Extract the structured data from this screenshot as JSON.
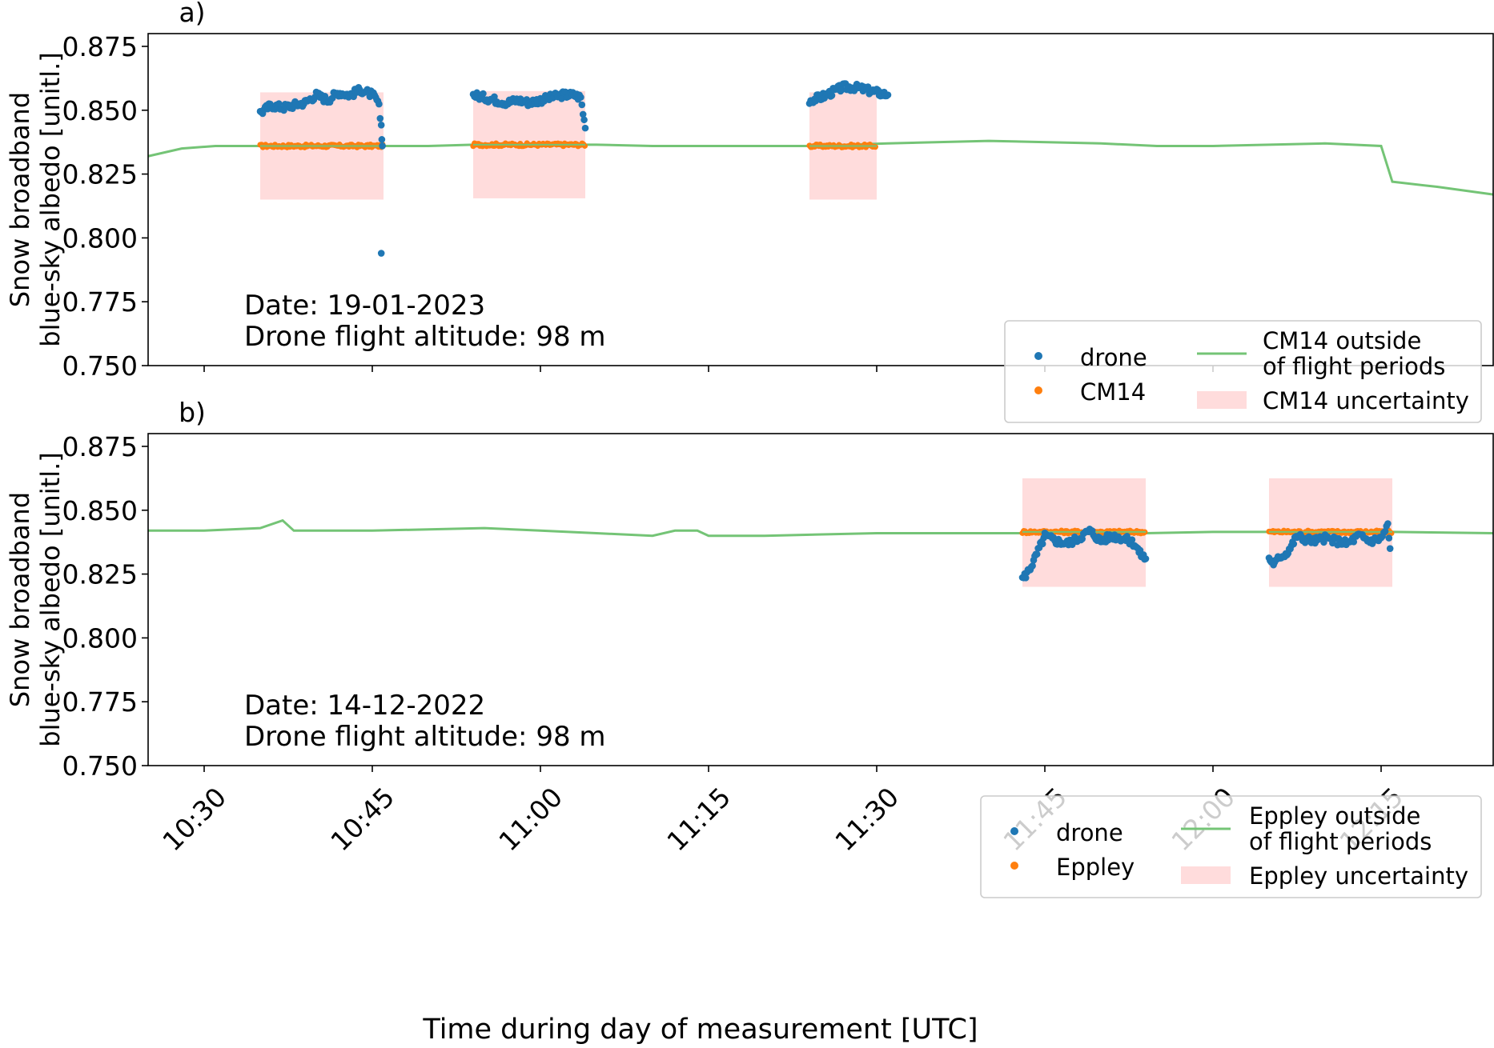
{
  "figure": {
    "xlabel": "Time during day of measurement [UTC]",
    "ylabel_line1": "Snow broadband",
    "ylabel_line2": "blue-sky albedo [unitl.]"
  },
  "chart_data": [
    {
      "type": "scatter",
      "panel_label": "a)",
      "annotation_date": "Date: 19-01-2023",
      "annotation_altitude": "Drone flight altitude: 98 m",
      "xlabel": "Time during day of measurement [UTC]",
      "ylabel": "Snow broadband blue-sky albedo [unitl.]",
      "ylim": [
        0.75,
        0.88
      ],
      "xlim": [
        "10:25",
        "12:25"
      ],
      "yticks": [
        "0.750",
        "0.775",
        "0.800",
        "0.825",
        "0.850",
        "0.875"
      ],
      "xticks": [
        "10:30",
        "10:45",
        "11:00",
        "11:15",
        "11:30",
        "11:45",
        "12:00",
        "12:15"
      ],
      "grid": false,
      "legend_position": "lower-right",
      "legend": [
        "drone",
        "CM14",
        "CM14 outside of flight periods",
        "CM14 uncertainty"
      ],
      "colors": {
        "drone": "#1f77b4",
        "reference": "#ff7f0e",
        "outside": "#74c476",
        "uncertainty": "#ffdcdc"
      },
      "flight_periods": [
        {
          "start": "10:35",
          "end": "10:46",
          "reference": 0.836,
          "band_low": 0.815,
          "band_high": 0.857,
          "drone": [
            [
              0,
              0.849
            ],
            [
              1,
              0.852
            ],
            [
              2,
              0.851
            ],
            [
              3,
              0.852
            ],
            [
              4,
              0.853
            ],
            [
              5,
              0.856
            ],
            [
              6,
              0.854
            ],
            [
              7,
              0.857
            ],
            [
              8,
              0.856
            ],
            [
              9,
              0.858
            ],
            [
              10,
              0.856
            ],
            [
              10.4,
              0.854
            ],
            [
              10.6,
              0.851
            ],
            [
              10.8,
              0.844
            ],
            [
              10.9,
              0.836
            ]
          ],
          "outliers": [
            [
              10.8,
              0.794
            ]
          ]
        },
        {
          "start": "10:54",
          "end": "11:04",
          "reference": 0.8365,
          "band_low": 0.8155,
          "band_high": 0.8575,
          "drone": [
            [
              0,
              0.856
            ],
            [
              1,
              0.855
            ],
            [
              2,
              0.854
            ],
            [
              3,
              0.853
            ],
            [
              4,
              0.854
            ],
            [
              5,
              0.853
            ],
            [
              6,
              0.854
            ],
            [
              7,
              0.855
            ],
            [
              8,
              0.856
            ],
            [
              9,
              0.856
            ],
            [
              9.6,
              0.855
            ],
            [
              10,
              0.843
            ]
          ],
          "outliers": []
        },
        {
          "start": "11:24",
          "end": "11:30",
          "reference": 0.836,
          "band_low": 0.815,
          "band_high": 0.857,
          "drone": [
            [
              0,
              0.854
            ],
            [
              1,
              0.855
            ],
            [
              2,
              0.857
            ],
            [
              3,
              0.859
            ],
            [
              4,
              0.859
            ],
            [
              5,
              0.858
            ],
            [
              6,
              0.857
            ],
            [
              7,
              0.856
            ]
          ],
          "outliers": []
        }
      ],
      "outside_series": [
        [
          "10:25",
          0.832
        ],
        [
          "10:28",
          0.835
        ],
        [
          "10:31",
          0.836
        ],
        [
          "10:35",
          0.836
        ],
        [
          "10:50",
          0.836
        ],
        [
          "10:54",
          0.8365
        ],
        [
          "11:05",
          0.8365
        ],
        [
          "11:10",
          0.836
        ],
        [
          "11:20",
          0.836
        ],
        [
          "11:24",
          0.836
        ],
        [
          "11:31",
          0.837
        ],
        [
          "11:40",
          0.838
        ],
        [
          "11:50",
          0.837
        ],
        [
          "11:55",
          0.836
        ],
        [
          "12:00",
          0.836
        ],
        [
          "12:10",
          0.837
        ],
        [
          "12:15",
          0.836
        ],
        [
          "12:16",
          0.822
        ],
        [
          "12:20",
          0.82
        ],
        [
          "12:25",
          0.817
        ]
      ]
    },
    {
      "type": "scatter",
      "panel_label": "b)",
      "annotation_date": "Date: 14-12-2022",
      "annotation_altitude": "Drone flight altitude: 98 m",
      "xlabel": "Time during day of measurement [UTC]",
      "ylabel": "Snow broadband blue-sky albedo [unitl.]",
      "ylim": [
        0.75,
        0.88
      ],
      "xlim": [
        "10:25",
        "12:25"
      ],
      "yticks": [
        "0.750",
        "0.775",
        "0.800",
        "0.825",
        "0.850",
        "0.875"
      ],
      "xticks": [
        "10:30",
        "10:45",
        "11:00",
        "11:15",
        "11:30",
        "11:45",
        "12:00",
        "12:15"
      ],
      "grid": false,
      "legend_position": "lower-right",
      "legend": [
        "drone",
        "Eppley",
        "Eppley outside of flight periods",
        "Eppley uncertainty"
      ],
      "colors": {
        "drone": "#1f77b4",
        "reference": "#ff7f0e",
        "outside": "#74c476",
        "uncertainty": "#ffdcdc"
      },
      "flight_periods": [
        {
          "start": "11:43",
          "end": "11:54",
          "reference": 0.8415,
          "band_low": 0.82,
          "band_high": 0.8625,
          "drone": [
            [
              0,
              0.823
            ],
            [
              0.5,
              0.826
            ],
            [
              1,
              0.83
            ],
            [
              1.5,
              0.835
            ],
            [
              2,
              0.84
            ],
            [
              3,
              0.838
            ],
            [
              4,
              0.837
            ],
            [
              5,
              0.839
            ],
            [
              6,
              0.842
            ],
            [
              7,
              0.838
            ],
            [
              8,
              0.84
            ],
            [
              9,
              0.839
            ],
            [
              10,
              0.837
            ],
            [
              10.5,
              0.833
            ],
            [
              11,
              0.831
            ]
          ],
          "outliers": []
        },
        {
          "start": "12:05",
          "end": "12:16",
          "reference": 0.8415,
          "band_low": 0.82,
          "band_high": 0.8625,
          "drone": [
            [
              0,
              0.831
            ],
            [
              0.5,
              0.829
            ],
            [
              1,
              0.832
            ],
            [
              1.5,
              0.833
            ],
            [
              2,
              0.836
            ],
            [
              2.5,
              0.84
            ],
            [
              3,
              0.839
            ],
            [
              4,
              0.838
            ],
            [
              5,
              0.839
            ],
            [
              6,
              0.838
            ],
            [
              7,
              0.837
            ],
            [
              8,
              0.84
            ],
            [
              9,
              0.838
            ],
            [
              10,
              0.839
            ],
            [
              10.6,
              0.844
            ],
            [
              10.8,
              0.835
            ]
          ],
          "outliers": []
        }
      ],
      "outside_series": [
        [
          "10:25",
          0.842
        ],
        [
          "10:30",
          0.842
        ],
        [
          "10:35",
          0.843
        ],
        [
          "10:37",
          0.846
        ],
        [
          "10:38",
          0.842
        ],
        [
          "10:45",
          0.842
        ],
        [
          "10:55",
          0.843
        ],
        [
          "11:00",
          0.842
        ],
        [
          "11:05",
          0.841
        ],
        [
          "11:10",
          0.84
        ],
        [
          "11:12",
          0.842
        ],
        [
          "11:14",
          0.842
        ],
        [
          "11:15",
          0.84
        ],
        [
          "11:20",
          0.84
        ],
        [
          "11:30",
          0.841
        ],
        [
          "11:43",
          0.841
        ],
        [
          "11:54",
          0.841
        ],
        [
          "12:00",
          0.8415
        ],
        [
          "12:05",
          0.8415
        ],
        [
          "12:16",
          0.8415
        ],
        [
          "12:25",
          0.841
        ]
      ]
    }
  ]
}
